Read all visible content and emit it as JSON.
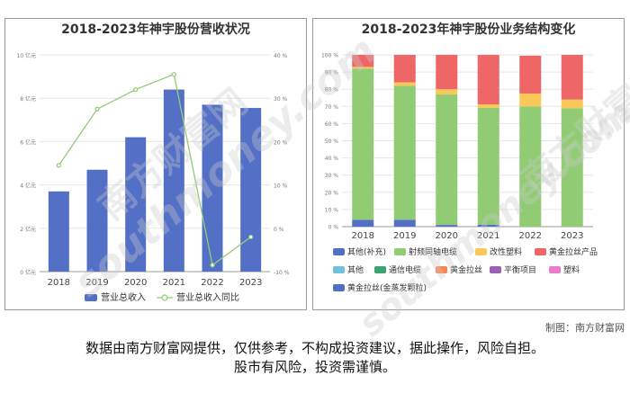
{
  "credit": "制图：南方财富网",
  "disclaimer": {
    "line1": "数据由南方财富网提供，仅供参考，不构成投资建议，据此操作，风险自担。",
    "line2": "股市有风险，投资需谨慎。"
  },
  "watermark": {
    "text1": "南方财富网",
    "text2": "southmoney.com"
  },
  "chart_data": [
    {
      "type": "bar",
      "title": "2018-2023年神宇股份营收状况",
      "categories": [
        "2018",
        "2019",
        "2020",
        "2021",
        "2022",
        "2023"
      ],
      "left_ticks": [
        "0 亿元",
        "2 亿元",
        "4 亿元",
        "6 亿元",
        "8 亿元",
        "10 亿元"
      ],
      "right_ticks": [
        "-10 %",
        "0 %",
        "10 %",
        "20 %",
        "30 %",
        "40 %"
      ],
      "ylim": [
        0,
        10
      ],
      "y2lim": [
        -10,
        40
      ],
      "grid": true,
      "legend_position": "bottom",
      "series": [
        {
          "name": "营业总收入",
          "type": "bar",
          "axis": "left",
          "color": "#5470c6",
          "values": [
            3.7,
            4.7,
            6.2,
            8.4,
            7.7,
            7.55
          ]
        },
        {
          "name": "营业总收入同比",
          "type": "line",
          "axis": "right",
          "color": "#91cc75",
          "values": [
            14.5,
            27.5,
            32,
            35.5,
            -8.5,
            -2
          ]
        }
      ]
    },
    {
      "type": "bar",
      "stacked": true,
      "title": "2018-2023年神宇股份业务结构变化",
      "categories": [
        "2018",
        "2019",
        "2020",
        "2021",
        "2022",
        "2023"
      ],
      "y_ticks": [
        "0 %",
        "10 %",
        "20 %",
        "30 %",
        "40 %",
        "50 %",
        "60 %",
        "70 %",
        "80 %",
        "90 %",
        "100 %"
      ],
      "ylim": [
        0,
        100
      ],
      "grid": true,
      "legend_position": "bottom",
      "series": [
        {
          "name": "其他(补充)",
          "color": "#5470c6",
          "values": [
            4,
            4,
            1,
            1.2,
            0,
            0
          ]
        },
        {
          "name": "射频同轴电缆",
          "color": "#91cc75",
          "values": [
            88,
            78,
            76,
            68,
            70,
            69
          ]
        },
        {
          "name": "改性塑料",
          "color": "#fac858",
          "values": [
            1,
            2,
            3,
            2,
            7.5,
            5
          ]
        },
        {
          "name": "黄金拉丝产品",
          "color": "#ee6666",
          "values": [
            7,
            16,
            20,
            28.8,
            22,
            26
          ]
        },
        {
          "name": "其他",
          "color": "#73c0de",
          "values": [
            0,
            0,
            0,
            0,
            0,
            0
          ]
        },
        {
          "name": "通信电缆",
          "color": "#3ba272",
          "values": [
            0,
            0,
            0,
            0,
            0,
            0
          ]
        },
        {
          "name": "黄金拉丝",
          "color": "#fc8452",
          "values": [
            0,
            0,
            0,
            0,
            0,
            0
          ]
        },
        {
          "name": "平衡项目",
          "color": "#9a60b4",
          "values": [
            0,
            0,
            0,
            0,
            0,
            0
          ]
        },
        {
          "name": "塑料",
          "color": "#ea7ccc",
          "values": [
            0,
            0,
            0,
            0,
            0,
            0
          ]
        },
        {
          "name": "黄金拉丝(金蒸发颗粒)",
          "color": "#5470c6",
          "values": [
            0,
            0,
            0,
            0,
            0,
            0
          ]
        }
      ]
    }
  ]
}
